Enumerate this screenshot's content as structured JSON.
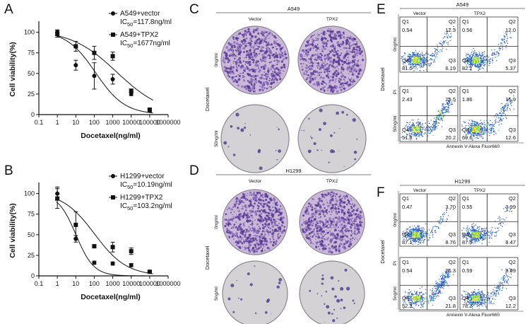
{
  "panels": {
    "A": "A",
    "B": "B",
    "C": "C",
    "D": "D",
    "E": "E",
    "F": "F"
  },
  "chart_data": [
    {
      "id": "A",
      "type": "scatter",
      "xscale": "log",
      "xlabel": "Docetaxel(ng/ml)",
      "ylabel": "Cell viability(%)",
      "xticks": [
        "0.1",
        "1",
        "10",
        "100",
        "1000",
        "10000",
        "100000",
        "1000000"
      ],
      "yticks": [
        "0",
        "25",
        "50",
        "75",
        "100"
      ],
      "xlim": [
        0.1,
        1000000
      ],
      "ylim": [
        0,
        110
      ],
      "series": [
        {
          "name": "A549+vector",
          "ic50_prefix": "IC",
          "ic50_sub": "50",
          "ic50_value": "=117.8ng/ml",
          "marker": "circle",
          "x": [
            1,
            10,
            100,
            1000,
            10000,
            100000
          ],
          "y": [
            100,
            60,
            47,
            43,
            25,
            5
          ],
          "err": [
            3,
            6,
            16,
            6,
            2,
            2
          ],
          "fit": {
            "ic50": 117.8,
            "hill": 0.55,
            "top": 102,
            "bottom": 0
          }
        },
        {
          "name": "A549+TPX2",
          "ic50_prefix": "IC",
          "ic50_sub": "50",
          "ic50_value": "=1677ng/ml",
          "marker": "square",
          "x": [
            1,
            10,
            100,
            1000,
            10000,
            100000
          ],
          "y": [
            98,
            83,
            75,
            71,
            29,
            6
          ],
          "err": [
            4,
            6,
            8,
            5,
            2,
            2
          ],
          "fit": {
            "ic50": 1677,
            "hill": 0.35,
            "top": 103,
            "bottom": 0
          }
        }
      ]
    },
    {
      "id": "B",
      "type": "scatter",
      "xscale": "log",
      "xlabel": "Docetaxel(ng/ml)",
      "ylabel": "Cell viability(%)",
      "xticks": [
        "0.1",
        "1",
        "10",
        "100",
        "1000",
        "10000",
        "100000",
        "1000000"
      ],
      "yticks": [
        "0",
        "25",
        "50",
        "75",
        "100"
      ],
      "xlim": [
        0.1,
        1000000
      ],
      "ylim": [
        0,
        110
      ],
      "series": [
        {
          "name": "H1299+vector",
          "ic50_prefix": "IC",
          "ic50_sub": "50",
          "ic50_value": "=10.19ng/ml",
          "marker": "circle",
          "x": [
            1,
            10,
            100,
            1000,
            10000,
            100000
          ],
          "y": [
            100,
            45,
            16,
            15,
            13,
            5
          ],
          "err": [
            8,
            4,
            2,
            2,
            2,
            1
          ],
          "fit": {
            "ic50": 10.19,
            "hill": 0.9,
            "top": 100,
            "bottom": 0
          }
        },
        {
          "name": "H1299+TPX2",
          "ic50_prefix": "IC",
          "ic50_sub": "50",
          "ic50_value": "=103.2ng/ml",
          "marker": "square",
          "x": [
            1,
            10,
            100,
            1000,
            10000,
            100000
          ],
          "y": [
            94,
            62,
            36,
            35,
            30,
            5
          ],
          "err": [
            12,
            16,
            2,
            6,
            4,
            1
          ],
          "fit": {
            "ic50": 103.2,
            "hill": 0.5,
            "top": 102,
            "bottom": 0
          }
        }
      ]
    }
  ],
  "colony": [
    {
      "id": "C",
      "cell_line": "A549",
      "columns": [
        "Vector",
        "TPX2"
      ],
      "treatment_label": "Docetaxel",
      "rows": [
        "0ng/ml",
        "50ng/ml"
      ]
    },
    {
      "id": "D",
      "cell_line": "H1299",
      "columns": [
        "Vector",
        "TPX2"
      ],
      "treatment_label": "Docetaxel",
      "rows": [
        "0ng/ml",
        "5ng/ml"
      ]
    }
  ],
  "flow": [
    {
      "id": "E",
      "cell_line": "A549",
      "columns": [
        "Vector",
        "TPX2"
      ],
      "treatment_label": "Docetaxel",
      "rows": [
        "0ng/ml",
        "50ng/ml"
      ],
      "y_axis": "PI",
      "x_axis": "Annexin V-Alexa Fluor660",
      "quadrant_labels": [
        "Q1",
        "Q2",
        "Q3",
        "Q4"
      ],
      "values": [
        [
          {
            "Q1": "0.54",
            "Q2": "12.3",
            "Q3": "6.19",
            "Q4": "81.0"
          },
          {
            "Q1": "0.56",
            "Q2": "12.0",
            "Q3": "5.37",
            "Q4": "82.1"
          }
        ],
        [
          {
            "Q1": "2.43",
            "Q2": "25.5",
            "Q3": "20.2",
            "Q4": "51.8"
          },
          {
            "Q1": "1.86",
            "Q2": "15.9",
            "Q3": "12.6",
            "Q4": "69.6"
          }
        ]
      ]
    },
    {
      "id": "F",
      "cell_line": "H1299",
      "columns": [
        "Vector",
        "TPX2"
      ],
      "treatment_label": "Docetaxel",
      "rows": [
        "0ng/ml",
        "5ng/ml"
      ],
      "y_axis": "PI",
      "x_axis": "Annexin V-Alexa Fluor660",
      "quadrant_labels": [
        "Q1",
        "Q2",
        "Q3",
        "Q4"
      ],
      "values": [
        [
          {
            "Q1": "0.47",
            "Q2": "3.70",
            "Q3": "8.76",
            "Q4": "87.1"
          },
          {
            "Q1": "0.55",
            "Q2": "3.99",
            "Q3": "8.47",
            "Q4": "87.0"
          }
        ],
        [
          {
            "Q1": "0.54",
            "Q2": "25.3",
            "Q3": "21.8",
            "Q4": "52.3"
          },
          {
            "Q1": "0.59",
            "Q2": "8.99",
            "Q3": "12.2",
            "Q4": "78.2"
          }
        ]
      ]
    }
  ]
}
